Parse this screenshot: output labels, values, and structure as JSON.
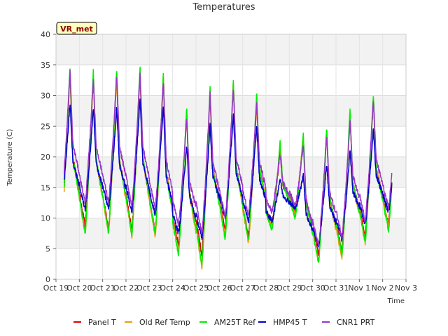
{
  "chart_data": {
    "type": "line",
    "title": "Temperatures",
    "xlabel": "Time",
    "ylabel": "Temperature (C)",
    "ylim": [
      0,
      40
    ],
    "xlim": [
      0,
      15
    ],
    "yticks": [
      0,
      5,
      10,
      15,
      20,
      25,
      30,
      35,
      40
    ],
    "xtick_labels": [
      "Oct 19",
      "Oct 20",
      "Oct 21",
      "Oct 22",
      "Oct 23",
      "Oct 24",
      "Oct 25",
      "Oct 26",
      "Oct 27",
      "Oct 28",
      "Oct 29",
      "Oct 30",
      "Oct 31",
      "Nov 1",
      "Nov 2",
      "Nov 3"
    ],
    "badge": "VR_met",
    "legend_position": "bottom-center",
    "grid": true,
    "series": [
      {
        "name": "Panel T",
        "color": "#dd0000",
        "daily_min": [
          10.5,
          8.8,
          8.2,
          8.0,
          7.5,
          5.5,
          4.0,
          8.0,
          7.0,
          9.0,
          11.0,
          4.0,
          4.5,
          7.0,
          9.0
        ],
        "daily_max": [
          33.5,
          33.0,
          33.5,
          34.0,
          33.0,
          27.0,
          30.0,
          32.0,
          29.0,
          21.0,
          23.0,
          24.0,
          26.5,
          29.5
        ]
      },
      {
        "name": "Old Ref Temp",
        "color": "#e8a000",
        "daily_min": [
          9.0,
          7.5,
          7.5,
          7.0,
          7.0,
          4.5,
          2.0,
          7.0,
          6.0,
          8.5,
          10.5,
          3.0,
          3.5,
          6.0,
          8.5
        ],
        "daily_max": [
          34.5,
          33.5,
          34.0,
          34.5,
          33.5,
          28.0,
          31.0,
          32.5,
          30.0,
          22.0,
          23.5,
          24.5,
          27.0,
          30.0
        ]
      },
      {
        "name": "AM25T Ref",
        "color": "#00ee00",
        "daily_min": [
          9.0,
          7.5,
          7.8,
          7.2,
          7.5,
          4.0,
          2.5,
          6.5,
          6.5,
          8.0,
          10.0,
          2.8,
          4.0,
          6.0,
          8.0
        ],
        "daily_max": [
          35.0,
          34.0,
          34.5,
          35.0,
          33.5,
          28.2,
          31.5,
          32.5,
          30.5,
          22.5,
          24.0,
          25.0,
          27.8,
          30.2
        ]
      },
      {
        "name": "HMP45 T",
        "color": "#0000cc",
        "daily_min": [
          12.5,
          11.5,
          11.5,
          11.0,
          10.5,
          7.5,
          6.5,
          10.0,
          9.5,
          9.5,
          11.5,
          5.5,
          6.5,
          9.0,
          11.0
        ],
        "daily_max": [
          28.8,
          28.0,
          28.0,
          29.5,
          28.5,
          22.0,
          25.2,
          27.0,
          25.0,
          16.5,
          17.0,
          19.0,
          21.0,
          24.5
        ]
      },
      {
        "name": "CNR1 PRT",
        "color": "#9933cc",
        "daily_min": [
          13.0,
          12.5,
          12.5,
          12.0,
          11.5,
          9.0,
          7.5,
          10.0,
          10.5,
          11.0,
          12.0,
          5.5,
          7.0,
          9.5,
          11.5
        ],
        "daily_max": [
          34.0,
          33.0,
          33.5,
          34.0,
          32.5,
          26.5,
          30.5,
          31.5,
          29.0,
          20.5,
          22.0,
          23.5,
          26.0,
          29.5
        ]
      }
    ]
  }
}
